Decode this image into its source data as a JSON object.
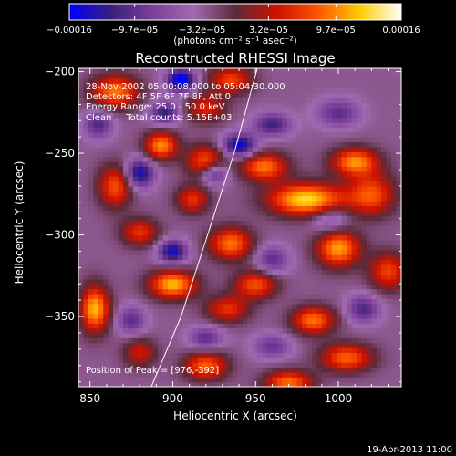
{
  "chart_data": {
    "type": "heatmap",
    "title": "Reconstructed RHESSI Image",
    "xlabel": "Heliocentric X (arcsec)",
    "ylabel": "Heliocentric Y (arcsec)",
    "xlim": [
      843,
      1038
    ],
    "ylim": [
      -393,
      -198
    ],
    "xticks": [
      850,
      900,
      950,
      1000
    ],
    "yticks": [
      -200,
      -250,
      -300,
      -350
    ],
    "colorbar": {
      "range": [
        -0.00016,
        0.00016
      ],
      "ticks": [
        -0.00016,
        -9.7e-05,
        -3.2e-05,
        3.2e-05,
        9.7e-05,
        0.00016
      ],
      "tick_labels": [
        "−0.00016",
        "−9.7e−05",
        "−3.2e−05",
        "3.2e−05",
        "9.7e−05",
        "0.00016"
      ],
      "label": "(photons cm⁻² s⁻¹ asec⁻²)",
      "colors": [
        "#0000ff",
        "#3a1f7a",
        "#7a3f9a",
        "#a06ab0",
        "#5a2a3a",
        "#cc1100",
        "#ff5500",
        "#ffcc00",
        "#ffffff"
      ]
    },
    "annotations": [
      "28-Nov-2002 05:00:08.000 to 05:04:30.000",
      "Detectors: 4F 5F 6F 7F 8F, Att 0",
      "Energy Range: 25.0 - 50.0 keV",
      "Clean     Total counts: 5.15E+03"
    ],
    "peak_label": "Position of Peak = [976,-392]",
    "peak": [
      976,
      -392
    ],
    "limb_curve": [
      [
        887,
        -393
      ],
      [
        905,
        -350
      ],
      [
        921,
        -300
      ],
      [
        937,
        -250
      ],
      [
        951,
        -198
      ]
    ],
    "features": [
      {
        "x": 981,
        "y": -278,
        "v": 1.0,
        "sx": 16,
        "sy": 7
      },
      {
        "x": 1010,
        "y": -255,
        "v": 0.8,
        "sx": 10,
        "sy": 6
      },
      {
        "x": 1020,
        "y": -275,
        "v": 0.65,
        "sx": 10,
        "sy": 9
      },
      {
        "x": 955,
        "y": -258,
        "v": 0.75,
        "sx": 10,
        "sy": 6
      },
      {
        "x": 920,
        "y": -255,
        "v": 0.7,
        "sx": 8,
        "sy": 7
      },
      {
        "x": 893,
        "y": -245,
        "v": 0.8,
        "sx": 7,
        "sy": 6
      },
      {
        "x": 865,
        "y": -212,
        "v": 0.75,
        "sx": 10,
        "sy": 7
      },
      {
        "x": 935,
        "y": -205,
        "v": 0.6,
        "sx": 9,
        "sy": 6
      },
      {
        "x": 920,
        "y": -222,
        "v": 0.5,
        "sx": 8,
        "sy": 6
      },
      {
        "x": 865,
        "y": -270,
        "v": 0.65,
        "sx": 7,
        "sy": 9
      },
      {
        "x": 912,
        "y": -278,
        "v": 0.55,
        "sx": 7,
        "sy": 6
      },
      {
        "x": 880,
        "y": -298,
        "v": 0.55,
        "sx": 8,
        "sy": 6
      },
      {
        "x": 935,
        "y": -305,
        "v": 0.75,
        "sx": 9,
        "sy": 7
      },
      {
        "x": 1000,
        "y": -308,
        "v": 0.85,
        "sx": 9,
        "sy": 8
      },
      {
        "x": 900,
        "y": -330,
        "v": 0.9,
        "sx": 10,
        "sy": 6
      },
      {
        "x": 950,
        "y": -330,
        "v": 0.65,
        "sx": 9,
        "sy": 6
      },
      {
        "x": 1030,
        "y": -322,
        "v": 0.6,
        "sx": 8,
        "sy": 8
      },
      {
        "x": 853,
        "y": -345,
        "v": 0.9,
        "sx": 6,
        "sy": 10
      },
      {
        "x": 933,
        "y": -345,
        "v": 0.55,
        "sx": 9,
        "sy": 6
      },
      {
        "x": 985,
        "y": -352,
        "v": 0.75,
        "sx": 9,
        "sy": 6
      },
      {
        "x": 1005,
        "y": -375,
        "v": 0.7,
        "sx": 11,
        "sy": 6
      },
      {
        "x": 920,
        "y": -380,
        "v": 0.7,
        "sx": 9,
        "sy": 6
      },
      {
        "x": 970,
        "y": -390,
        "v": 0.75,
        "sx": 10,
        "sy": 5
      },
      {
        "x": 880,
        "y": -372,
        "v": 0.45,
        "sx": 7,
        "sy": 6
      },
      {
        "x": 905,
        "y": -205,
        "v": -0.9,
        "sx": 6,
        "sy": 5
      },
      {
        "x": 895,
        "y": -225,
        "v": -0.6,
        "sx": 6,
        "sy": 5
      },
      {
        "x": 940,
        "y": -245,
        "v": -0.8,
        "sx": 7,
        "sy": 5
      },
      {
        "x": 855,
        "y": -232,
        "v": -0.5,
        "sx": 6,
        "sy": 6
      },
      {
        "x": 880,
        "y": -262,
        "v": -0.75,
        "sx": 6,
        "sy": 6
      },
      {
        "x": 925,
        "y": -262,
        "v": -0.6,
        "sx": 6,
        "sy": 5
      },
      {
        "x": 960,
        "y": -232,
        "v": -0.55,
        "sx": 8,
        "sy": 5
      },
      {
        "x": 1000,
        "y": -225,
        "v": -0.45,
        "sx": 9,
        "sy": 6
      },
      {
        "x": 995,
        "y": -290,
        "v": -0.35,
        "sx": 8,
        "sy": 6
      },
      {
        "x": 900,
        "y": -310,
        "v": -0.75,
        "sx": 6,
        "sy": 5
      },
      {
        "x": 960,
        "y": -315,
        "v": -0.45,
        "sx": 7,
        "sy": 6
      },
      {
        "x": 920,
        "y": -363,
        "v": -0.45,
        "sx": 7,
        "sy": 5
      },
      {
        "x": 1015,
        "y": -345,
        "v": -0.5,
        "sx": 7,
        "sy": 6
      },
      {
        "x": 875,
        "y": -352,
        "v": -0.45,
        "sx": 6,
        "sy": 6
      },
      {
        "x": 960,
        "y": -368,
        "v": -0.4,
        "sx": 8,
        "sy": 5
      }
    ]
  },
  "footer": {
    "date_stamp": "19-Apr-2013 11:00"
  }
}
